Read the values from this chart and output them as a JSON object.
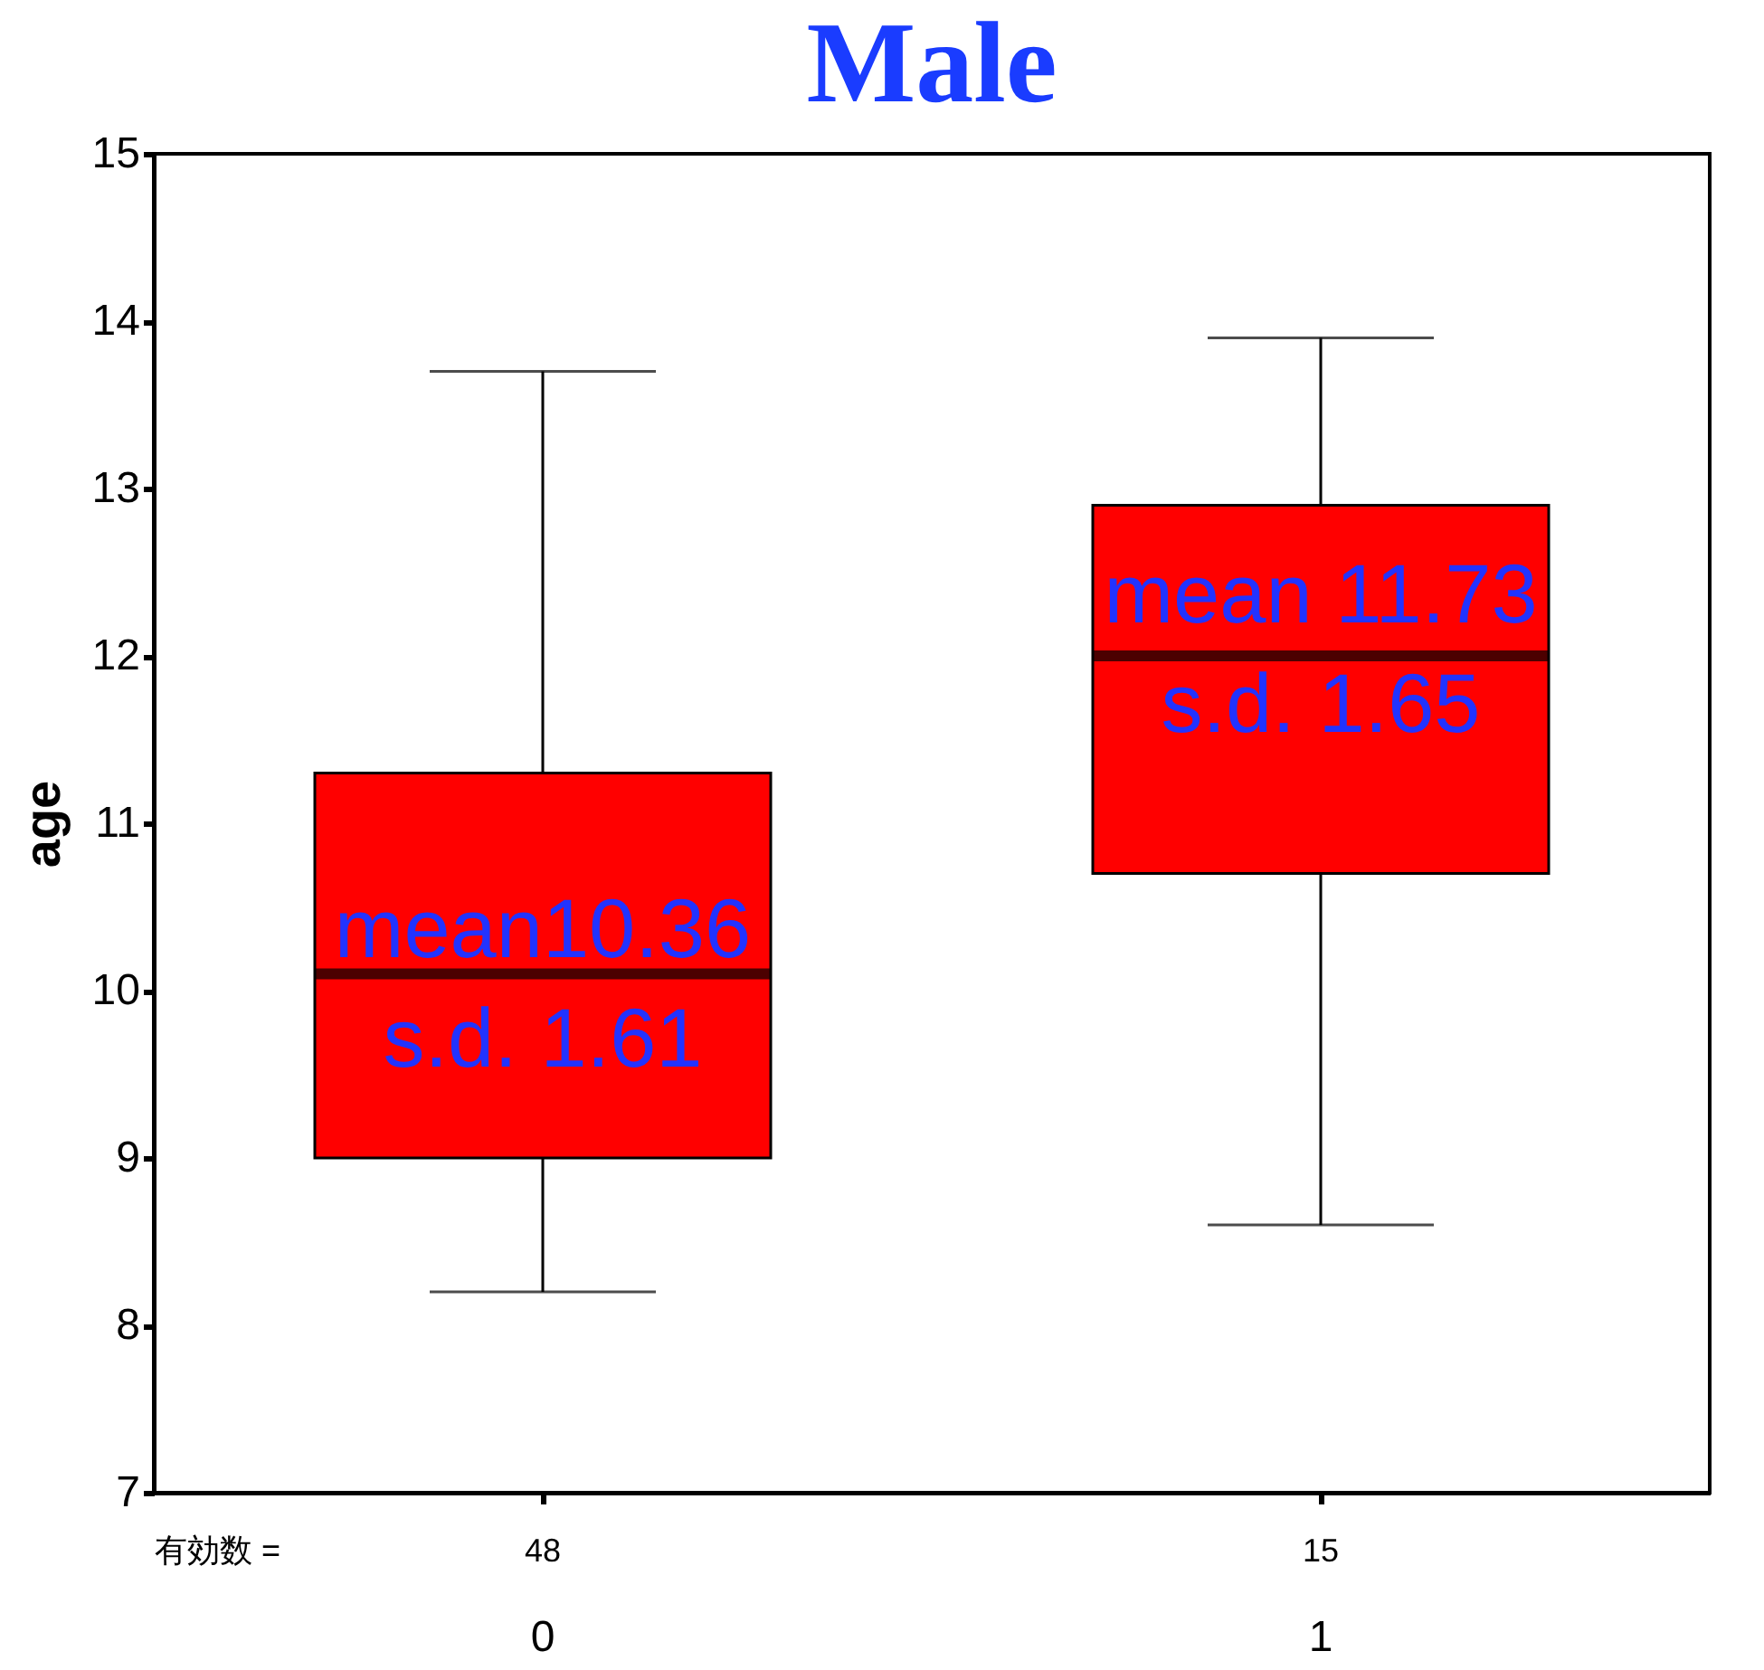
{
  "chart_data": {
    "type": "box",
    "title": "Male",
    "ylabel": "age",
    "categories": [
      "0",
      "1"
    ],
    "series": [
      {
        "color": "#ff0000",
        "boxes": [
          {
            "low": 8.2,
            "q1": 9.0,
            "median": 10.1,
            "q3": 11.3,
            "high": 13.7
          },
          {
            "low": 8.6,
            "q1": 10.7,
            "median": 12.0,
            "q3": 12.9,
            "high": 13.9
          }
        ]
      }
    ],
    "ylim": [
      7,
      15
    ],
    "yticks": [
      7,
      8,
      9,
      10,
      11,
      12,
      13,
      14,
      15
    ],
    "grid": false,
    "annotations": [
      {
        "text": "mean10.36",
        "x": "0",
        "y": 10.35
      },
      {
        "text": "s.d. 1.61",
        "x": "0",
        "y": 9.7
      },
      {
        "text": "mean 11.73",
        "x": "1",
        "y": 12.35
      },
      {
        "text": "s.d. 1.65",
        "x": "1",
        "y": 11.7
      },
      "有効数 =",
      "48",
      "15"
    ]
  }
}
